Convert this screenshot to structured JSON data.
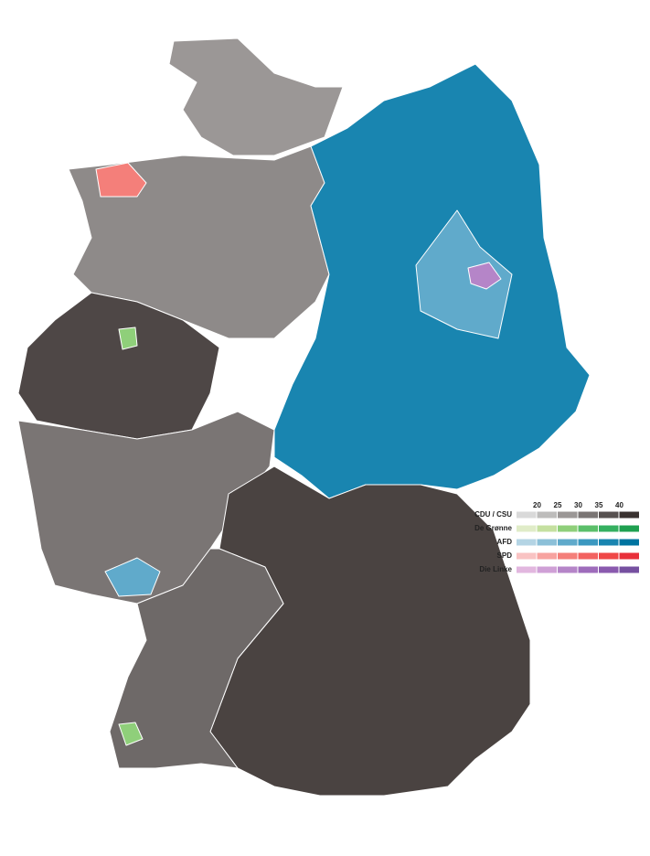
{
  "legend": {
    "ticks": [
      20,
      25,
      30,
      35,
      40
    ],
    "parties": [
      {
        "name": "CDU / CSU",
        "colors": [
          "#d9d9d9",
          "#bdbcbb",
          "#9b9796",
          "#7a7574",
          "#575150",
          "#3a3230"
        ]
      },
      {
        "name": "De Grønne",
        "colors": [
          "#e0ecc8",
          "#c5e0a0",
          "#8fcf7a",
          "#5bbf6a",
          "#35b060",
          "#1fa050"
        ]
      },
      {
        "name": "AFD",
        "colors": [
          "#b4d4e4",
          "#8cc0d8",
          "#60aacb",
          "#3b98c0",
          "#1985b0",
          "#0074a0"
        ]
      },
      {
        "name": "SPD",
        "colors": [
          "#f9c3c3",
          "#f7a3a0",
          "#f47f7a",
          "#f26260",
          "#ef4747",
          "#e8303a"
        ]
      },
      {
        "name": "Die Linke",
        "colors": [
          "#e2b7df",
          "#cfa0d6",
          "#b585c8",
          "#9e6cbb",
          "#8a5aae",
          "#7650a0"
        ]
      }
    ]
  }
}
